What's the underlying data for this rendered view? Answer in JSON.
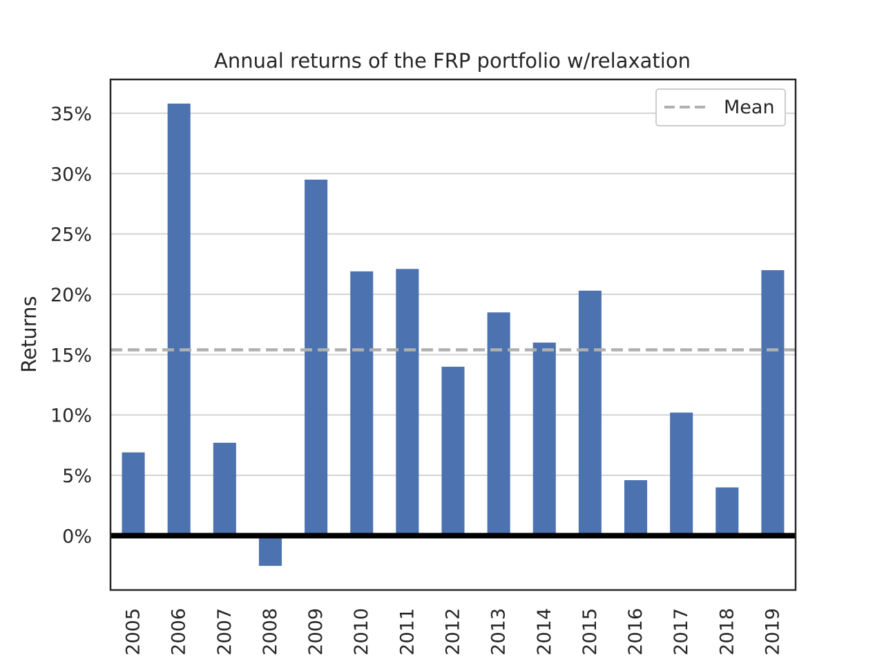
{
  "chart_data": {
    "type": "bar",
    "title": "Annual returns of the FRP portfolio w/relaxation",
    "xlabel": "",
    "ylabel": "Returns",
    "categories": [
      "2005",
      "2006",
      "2007",
      "2008",
      "2009",
      "2010",
      "2011",
      "2012",
      "2013",
      "2014",
      "2015",
      "2016",
      "2017",
      "2018",
      "2019"
    ],
    "series": [
      {
        "values": [
          6.9,
          35.8,
          7.7,
          -2.5,
          29.5,
          21.9,
          22.1,
          14.0,
          18.5,
          16.0,
          20.3,
          4.6,
          10.2,
          4.0,
          22.0
        ]
      }
    ],
    "y_unit": "%",
    "ylim": [
      -4.5,
      37.8
    ],
    "yticks": [
      0,
      5,
      10,
      15,
      20,
      25,
      30,
      35
    ],
    "ytick_labels": [
      "0%",
      "5%",
      "10%",
      "15%",
      "20%",
      "25%",
      "30%",
      "35%"
    ],
    "mean_line": {
      "label": "Mean",
      "value": 15.4,
      "style": "dashed"
    },
    "zero_line": {
      "value": 0,
      "style": "solid-thick"
    },
    "legend": {
      "position": "top-right",
      "entries": [
        "Mean"
      ]
    },
    "grid": {
      "y": true,
      "x": false
    },
    "colors": {
      "bar": "#4c72b0",
      "mean_line": "#b0b0b0",
      "zero_line": "#000000",
      "grid": "#d3d3d3",
      "axes_edge": "#262626",
      "text": "#262626",
      "legend_edge": "#cccccc"
    }
  }
}
